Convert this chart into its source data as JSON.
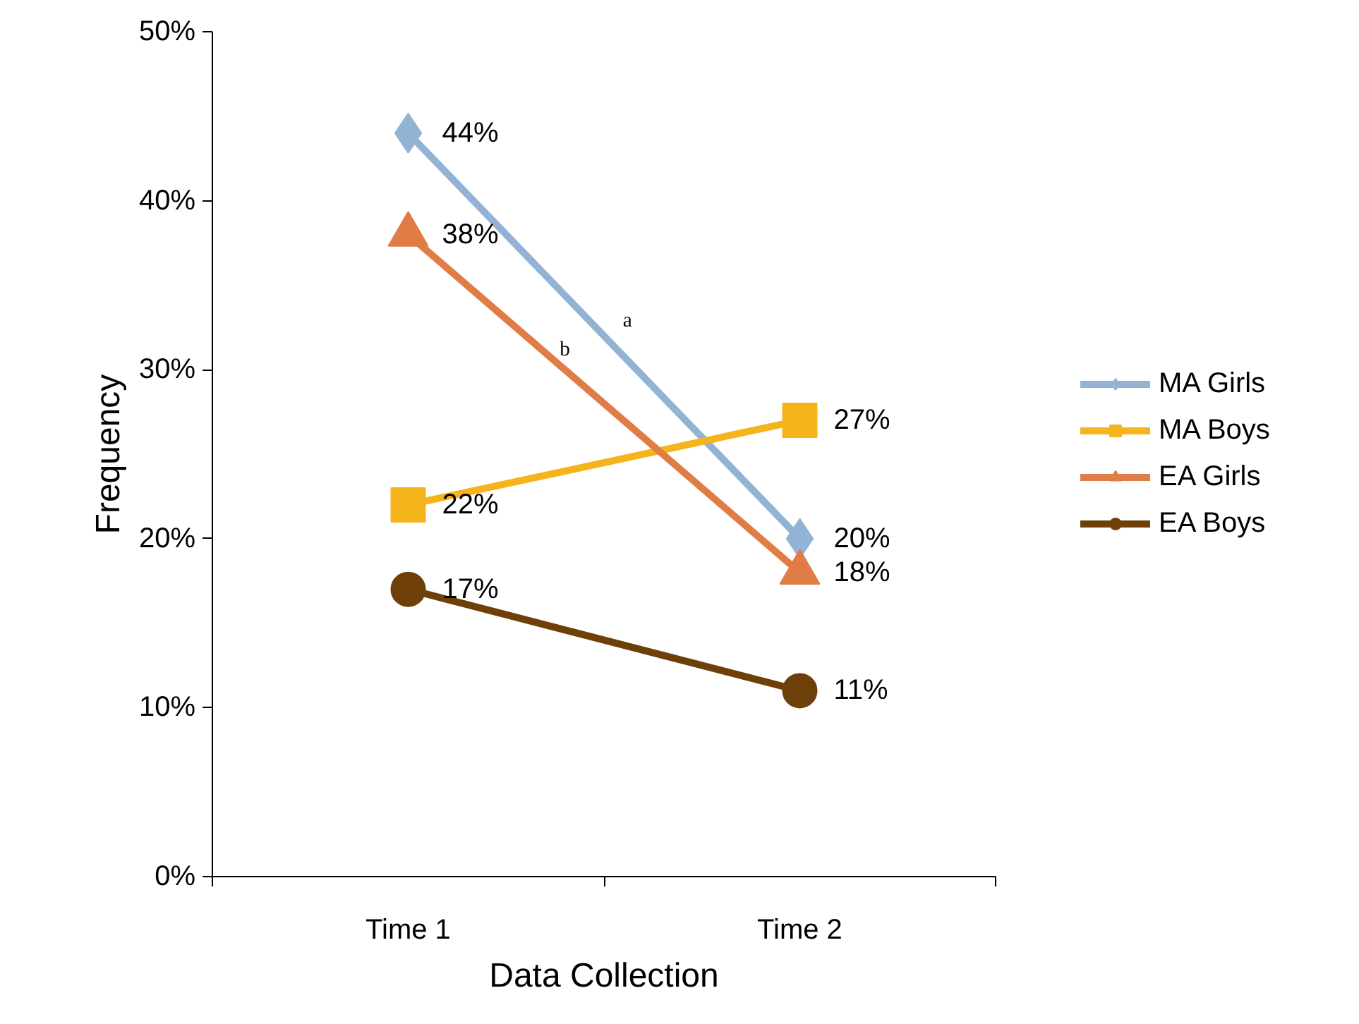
{
  "chart_data": {
    "type": "line",
    "xlabel": "Data Collection",
    "ylabel": "Frequency",
    "categories": [
      "Time 1",
      "Time 2"
    ],
    "series": [
      {
        "name": "MA Girls",
        "color": "#93b3d4",
        "marker": "diamond",
        "values": [
          44,
          20
        ],
        "value_labels": [
          "44%",
          "20%"
        ]
      },
      {
        "name": "MA Boys",
        "color": "#f5b31c",
        "marker": "square",
        "values": [
          22,
          27
        ],
        "value_labels": [
          "22%",
          "27%"
        ]
      },
      {
        "name": "EA Girls",
        "color": "#e07c46",
        "marker": "triangle",
        "values": [
          38,
          18
        ],
        "value_labels": [
          "38%",
          "18%"
        ]
      },
      {
        "name": "EA Boys",
        "color": "#6f3f0a",
        "marker": "circle",
        "values": [
          17,
          11
        ],
        "value_labels": [
          "17%",
          "11%"
        ]
      }
    ],
    "ylim": [
      0,
      50
    ],
    "yticks": [
      {
        "value": 0,
        "label": "0%"
      },
      {
        "value": 10,
        "label": "10%"
      },
      {
        "value": 20,
        "label": "20%"
      },
      {
        "value": 30,
        "label": "30%"
      },
      {
        "value": 40,
        "label": "40%"
      },
      {
        "value": 50,
        "label": "50%"
      }
    ],
    "annotations": [
      "a",
      "b"
    ],
    "legend": "right",
    "grid": false,
    "line_style": "solid"
  }
}
